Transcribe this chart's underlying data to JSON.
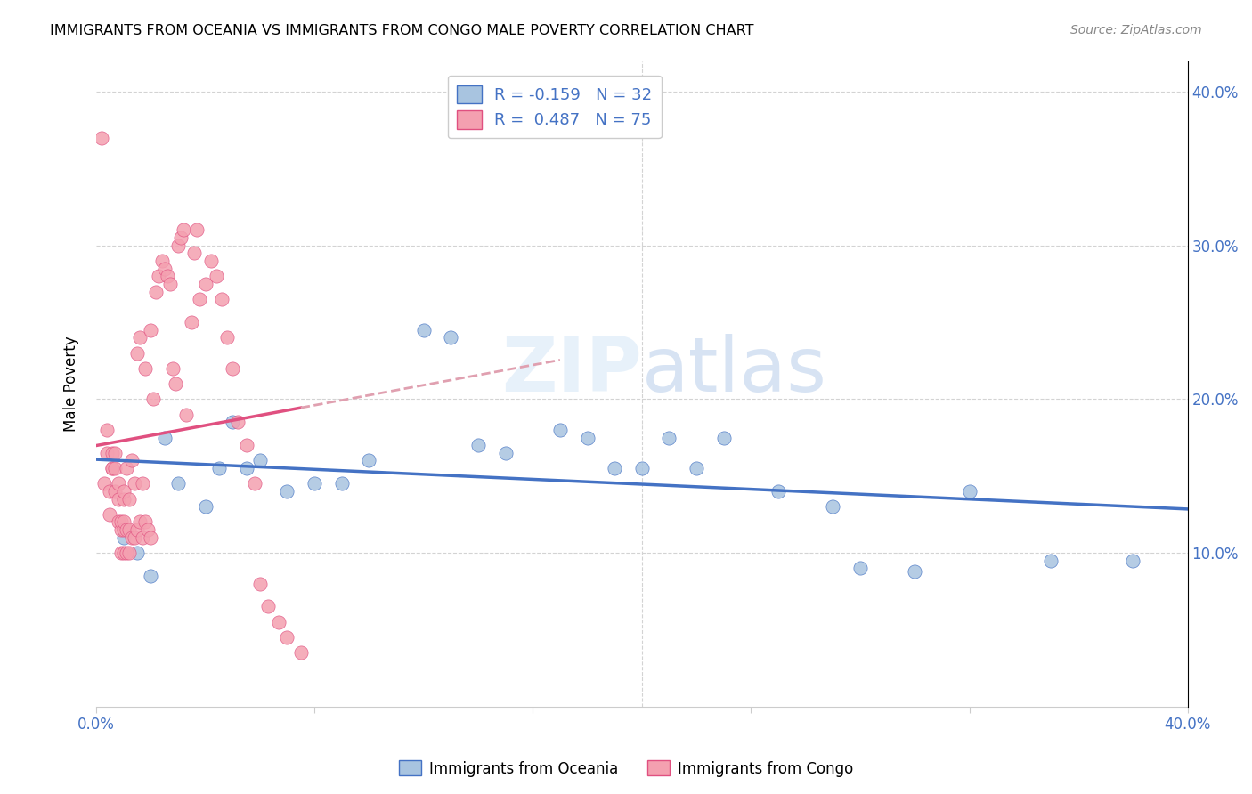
{
  "title": "IMMIGRANTS FROM OCEANIA VS IMMIGRANTS FROM CONGO MALE POVERTY CORRELATION CHART",
  "source": "Source: ZipAtlas.com",
  "ylabel": "Male Poverty",
  "xmin": 0.0,
  "xmax": 0.4,
  "ymin": 0.0,
  "ymax": 0.42,
  "yticks": [
    0.1,
    0.2,
    0.3,
    0.4
  ],
  "ytick_labels": [
    "10.0%",
    "20.0%",
    "30.0%",
    "40.0%"
  ],
  "blue_R": "-0.159",
  "blue_N": "32",
  "pink_R": "0.487",
  "pink_N": "75",
  "blue_color": "#a8c4e0",
  "pink_color": "#f4a0b0",
  "blue_line_color": "#4472c4",
  "pink_line_color": "#e05080",
  "pink_dashed_color": "#e0a0b0",
  "legend_label_blue": "Immigrants from Oceania",
  "legend_label_pink": "Immigrants from Congo",
  "blue_scatter_x": [
    0.01,
    0.015,
    0.02,
    0.025,
    0.03,
    0.04,
    0.045,
    0.05,
    0.055,
    0.06,
    0.07,
    0.08,
    0.09,
    0.1,
    0.12,
    0.13,
    0.14,
    0.15,
    0.17,
    0.18,
    0.19,
    0.2,
    0.21,
    0.22,
    0.23,
    0.25,
    0.27,
    0.28,
    0.3,
    0.32,
    0.35,
    0.38
  ],
  "blue_scatter_y": [
    0.11,
    0.1,
    0.085,
    0.175,
    0.145,
    0.13,
    0.155,
    0.185,
    0.155,
    0.16,
    0.14,
    0.145,
    0.145,
    0.16,
    0.245,
    0.24,
    0.17,
    0.165,
    0.18,
    0.175,
    0.155,
    0.155,
    0.175,
    0.155,
    0.175,
    0.14,
    0.13,
    0.09,
    0.088,
    0.14,
    0.095,
    0.095
  ],
  "pink_scatter_x": [
    0.002,
    0.003,
    0.004,
    0.004,
    0.005,
    0.005,
    0.006,
    0.006,
    0.006,
    0.007,
    0.007,
    0.007,
    0.008,
    0.008,
    0.008,
    0.009,
    0.009,
    0.009,
    0.01,
    0.01,
    0.01,
    0.01,
    0.01,
    0.011,
    0.011,
    0.011,
    0.012,
    0.012,
    0.012,
    0.013,
    0.013,
    0.014,
    0.014,
    0.015,
    0.015,
    0.016,
    0.016,
    0.017,
    0.017,
    0.018,
    0.018,
    0.019,
    0.02,
    0.02,
    0.021,
    0.022,
    0.023,
    0.024,
    0.025,
    0.026,
    0.027,
    0.028,
    0.029,
    0.03,
    0.031,
    0.032,
    0.033,
    0.035,
    0.036,
    0.037,
    0.038,
    0.04,
    0.042,
    0.044,
    0.046,
    0.048,
    0.05,
    0.052,
    0.055,
    0.058,
    0.06,
    0.063,
    0.067,
    0.07,
    0.075
  ],
  "pink_scatter_y": [
    0.37,
    0.145,
    0.165,
    0.18,
    0.125,
    0.14,
    0.155,
    0.155,
    0.165,
    0.14,
    0.155,
    0.165,
    0.12,
    0.135,
    0.145,
    0.1,
    0.115,
    0.12,
    0.1,
    0.115,
    0.12,
    0.135,
    0.14,
    0.1,
    0.115,
    0.155,
    0.1,
    0.115,
    0.135,
    0.11,
    0.16,
    0.11,
    0.145,
    0.115,
    0.23,
    0.12,
    0.24,
    0.11,
    0.145,
    0.12,
    0.22,
    0.115,
    0.11,
    0.245,
    0.2,
    0.27,
    0.28,
    0.29,
    0.285,
    0.28,
    0.275,
    0.22,
    0.21,
    0.3,
    0.305,
    0.31,
    0.19,
    0.25,
    0.295,
    0.31,
    0.265,
    0.275,
    0.29,
    0.28,
    0.265,
    0.24,
    0.22,
    0.185,
    0.17,
    0.145,
    0.08,
    0.065,
    0.055,
    0.045,
    0.035
  ]
}
